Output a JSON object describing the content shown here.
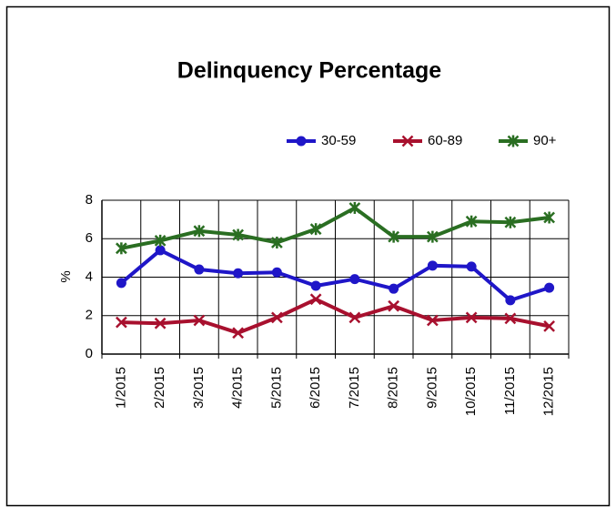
{
  "chart_data": {
    "type": "line",
    "title": "Delinquency Percentage",
    "y_label": "%",
    "categories": [
      "1/2015",
      "2/2015",
      "3/2015",
      "4/2015",
      "5/2015",
      "6/2015",
      "7/2015",
      "8/2015",
      "9/2015",
      "10/2015",
      "11/2015",
      "12/2015"
    ],
    "series": [
      {
        "name": "30-59",
        "color": "#1f16c8",
        "marker": "circle",
        "values": [
          3.7,
          5.4,
          4.4,
          4.2,
          4.25,
          3.55,
          3.9,
          3.4,
          4.6,
          4.55,
          2.8,
          3.45
        ]
      },
      {
        "name": "60-89",
        "color": "#a8102e",
        "marker": "x",
        "values": [
          1.65,
          1.6,
          1.75,
          1.1,
          1.9,
          2.85,
          1.9,
          2.5,
          1.75,
          1.9,
          1.85,
          1.45
        ]
      },
      {
        "name": "90+",
        "color": "#2a6e22",
        "marker": "star",
        "values": [
          5.5,
          5.9,
          6.4,
          6.2,
          5.8,
          6.5,
          7.6,
          6.1,
          6.1,
          6.9,
          6.85,
          7.1
        ]
      }
    ],
    "ylim": [
      0,
      8
    ],
    "yticks": [
      0,
      2,
      4,
      6,
      8
    ],
    "grid": true
  }
}
